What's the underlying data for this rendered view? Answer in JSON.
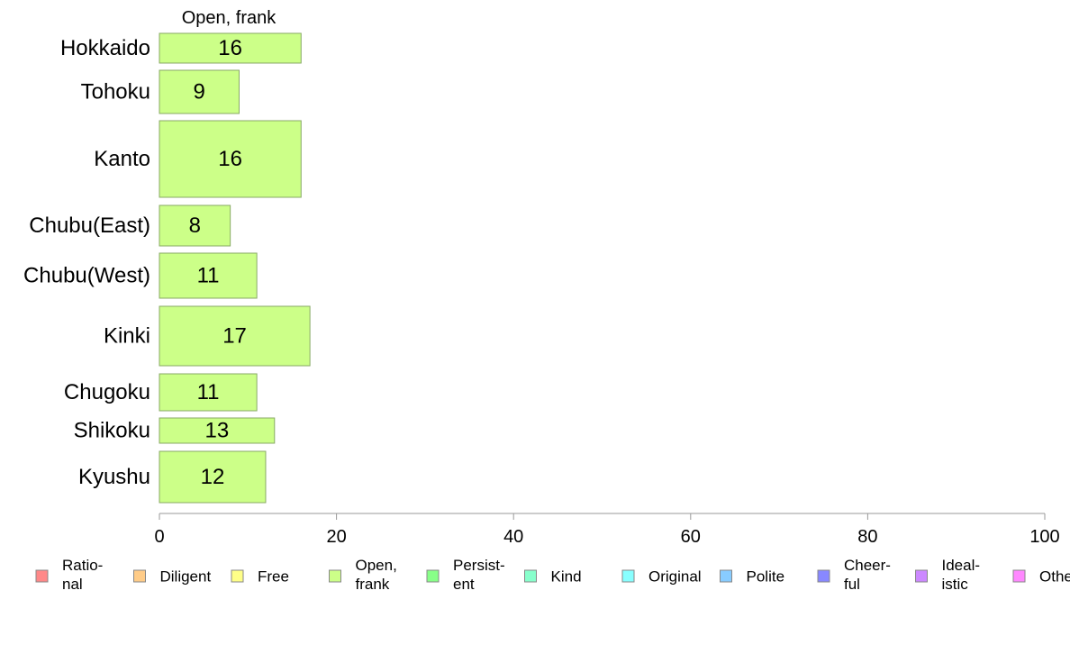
{
  "chart_data": {
    "type": "bar",
    "orientation": "horizontal",
    "title": "Open, frank",
    "categories": [
      "Hokkaido",
      "Tohoku",
      "Kanto",
      "Chubu(East)",
      "Chubu(West)",
      "Kinki",
      "Chugoku",
      "Shikoku",
      "Kyushu"
    ],
    "values": [
      16,
      9,
      16,
      8,
      11,
      17,
      11,
      13,
      12
    ],
    "value_labels": [
      "16",
      "9",
      "16",
      "8",
      "11",
      "17",
      "11",
      "13",
      "12"
    ],
    "bar_color": "#ccff88",
    "bar_border_color": "#88aa66",
    "xlim": [
      0,
      100
    ],
    "xticks": [
      "0",
      "20",
      "40",
      "60",
      "80",
      "100"
    ],
    "grid": false,
    "legend_position": "bottom",
    "legend": [
      {
        "label": "Ratio-\nnal",
        "color": "#ff8888"
      },
      {
        "label": "Diligent",
        "color": "#ffcc88"
      },
      {
        "label": "Free",
        "color": "#ffff88"
      },
      {
        "label": "Open,\nfrank",
        "color": "#ccff88"
      },
      {
        "label": "Persist-\nent",
        "color": "#88ff88"
      },
      {
        "label": "Kind",
        "color": "#88ffcc"
      },
      {
        "label": "Original",
        "color": "#88ffff"
      },
      {
        "label": "Polite",
        "color": "#88ccff"
      },
      {
        "label": "Cheer-\nful",
        "color": "#8888ff"
      },
      {
        "label": "Ideal-\nistic",
        "color": "#cc88ff"
      },
      {
        "label": "Others",
        "color": "#ff88ff"
      }
    ]
  }
}
